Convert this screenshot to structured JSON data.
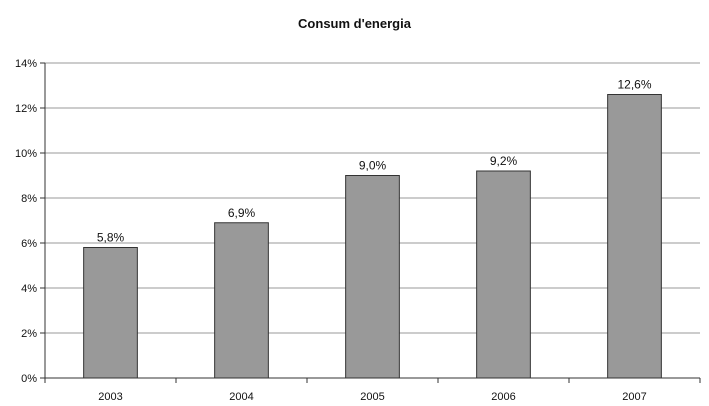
{
  "chart_data": {
    "type": "bar",
    "title": "Consum d'energia",
    "xlabel": "",
    "ylabel": "",
    "categories": [
      "2003",
      "2004",
      "2005",
      "2006",
      "2007"
    ],
    "values": [
      5.8,
      6.9,
      9.0,
      9.2,
      12.6
    ],
    "data_labels": [
      "5,8%",
      "6,9%",
      "9,0%",
      "9,2%",
      "12,6%"
    ],
    "ylim": [
      0,
      14
    ],
    "yticks": [
      0,
      2,
      4,
      6,
      8,
      10,
      12,
      14
    ],
    "ytick_labels": [
      "0%",
      "2%",
      "4%",
      "6%",
      "8%",
      "10%",
      "12%",
      "14%"
    ],
    "grid": true,
    "legend": "none",
    "colors": {
      "bar_fill": "#999999",
      "bar_stroke": "#333333",
      "grid": "#999999",
      "axis": "#333333"
    }
  }
}
